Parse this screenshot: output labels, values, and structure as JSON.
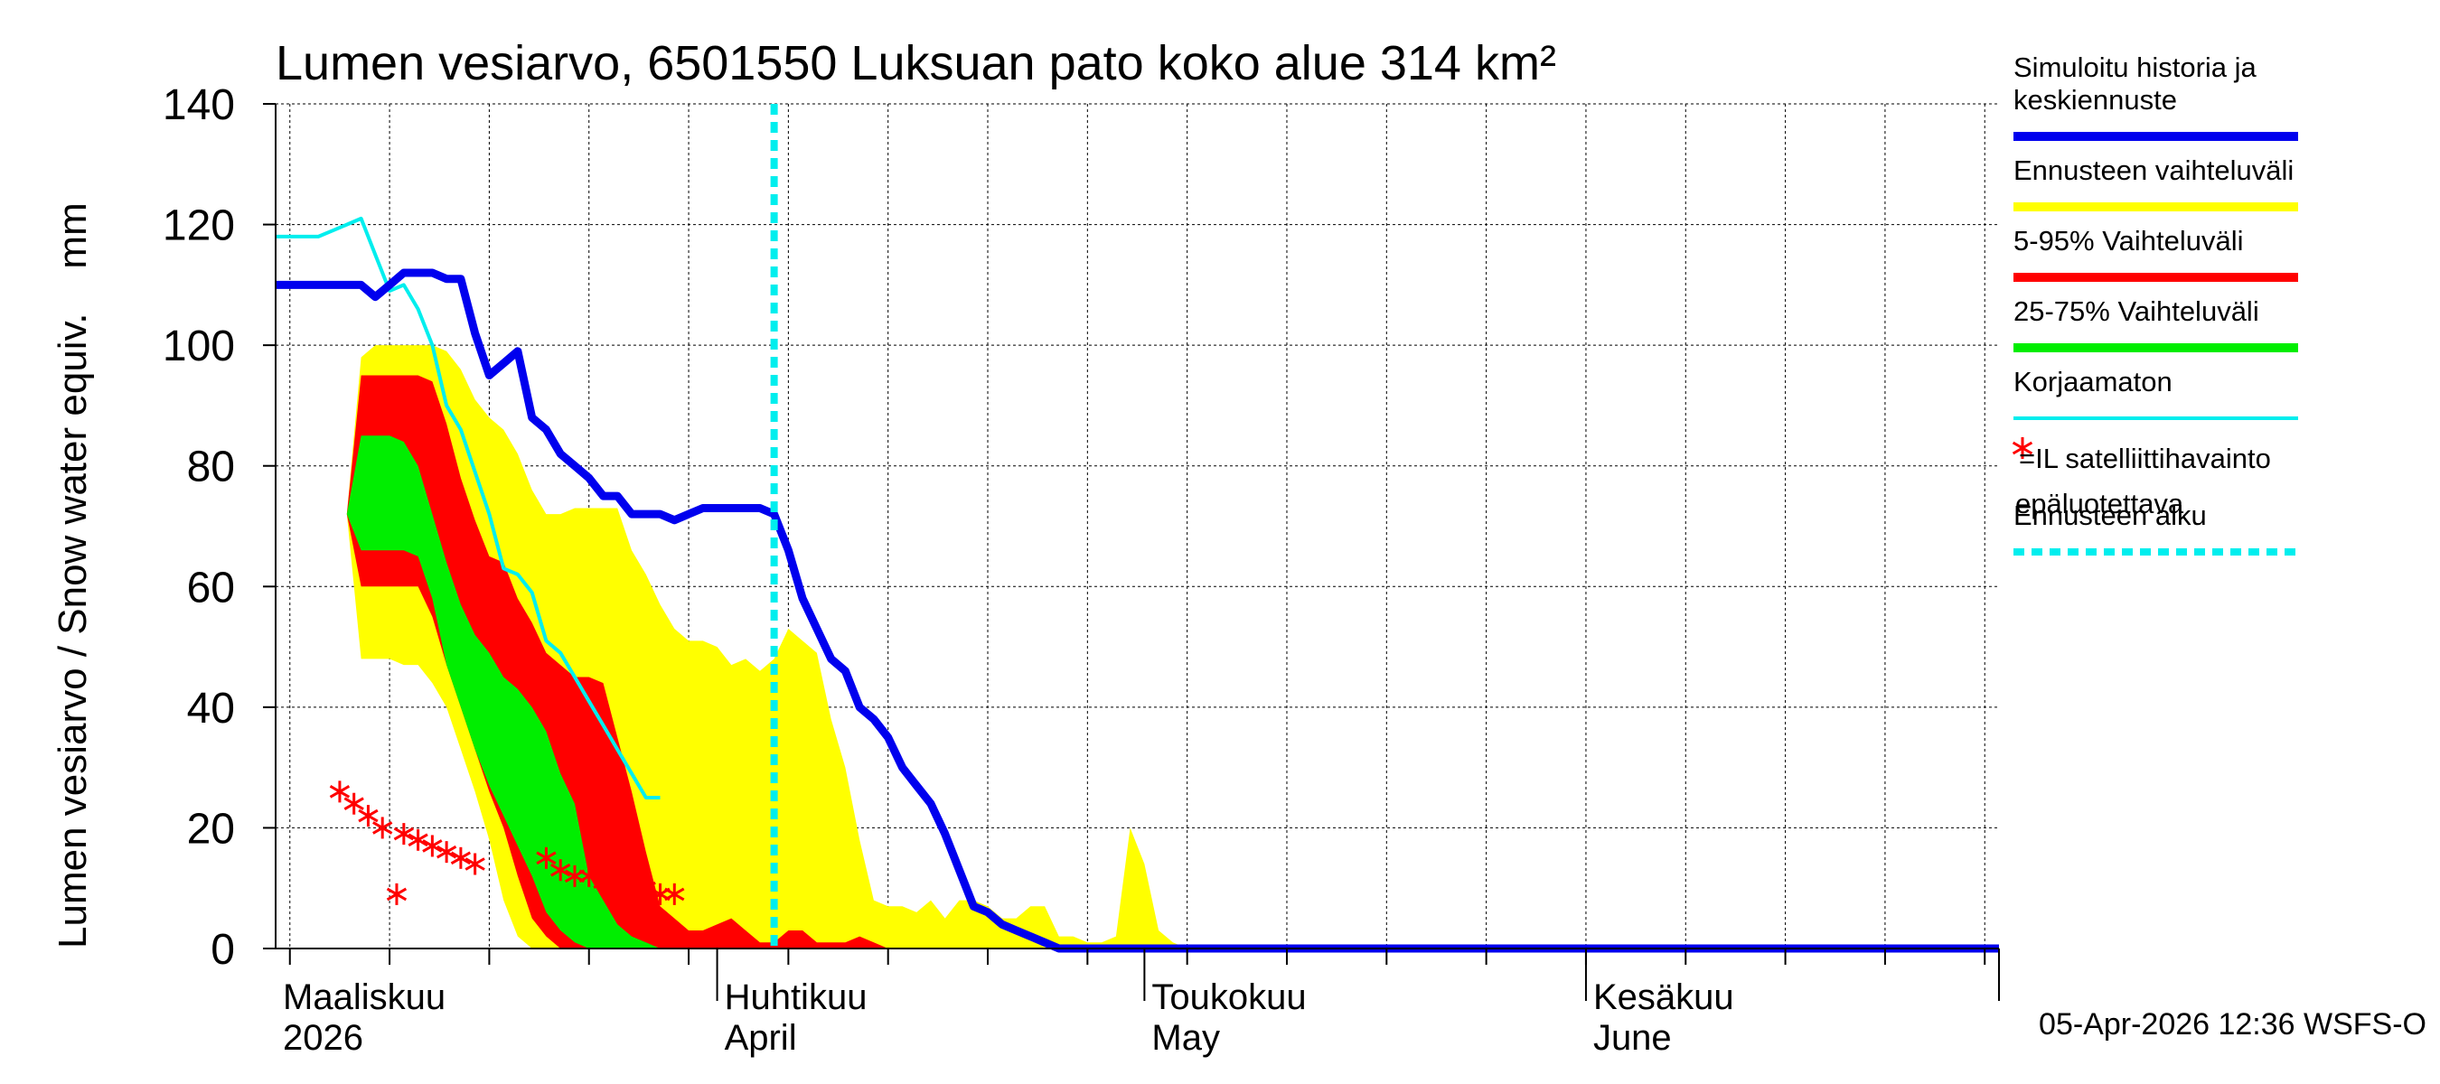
{
  "chart_data": {
    "type": "area",
    "title": "Lumen vesiarvo, 6501550 Luksuan pato koko alue 314 km²",
    "ylabel": "Lumen vesiarvo / Snow water equiv.    mm",
    "ylim": [
      0,
      140
    ],
    "yticks": [
      "0",
      "20",
      "40",
      "60",
      "80",
      "100",
      "120",
      "140"
    ],
    "xlim": [
      "2026-03-01",
      "2026-06-30"
    ],
    "grid": true,
    "month_labels": [
      {
        "line1": "Maaliskuu",
        "line2": "2026",
        "date": "2026-03-01"
      },
      {
        "line1": "Huhtikuu",
        "line2": "April",
        "date": "2026-04-01"
      },
      {
        "line1": "Toukokuu",
        "line2": "May",
        "date": "2026-05-01"
      },
      {
        "line1": "Kesäkuu",
        "line2": "June",
        "date": "2026-06-01"
      }
    ],
    "forecast_start": "2026-04-05",
    "footer": "05-Apr-2026 12:36 WSFS-O",
    "legend_position": "right",
    "legend": [
      {
        "label": "Simuloitu historia ja keskiennuste",
        "color": "#0000ee",
        "style": "line"
      },
      {
        "label": "Ennusteen vaihteluväli",
        "color": "#ffff00",
        "style": "line"
      },
      {
        "label": "5-95% Vaihteluväli",
        "color": "#ff0000",
        "style": "line"
      },
      {
        "label": "25-75% Vaihteluväli",
        "color": "#00ee00",
        "style": "line"
      },
      {
        "label": "Korjaamaton",
        "color": "#00eeee",
        "style": "line"
      },
      {
        "label": "=IL satelliittihavainto epäluotettava",
        "color": "#ff0000",
        "style": "star"
      },
      {
        "label": "Ennusteen alku",
        "color": "#00eeee",
        "style": "dashed"
      }
    ],
    "series": [
      {
        "name": "Ennusteen vaihteluväli",
        "kind": "band",
        "color": "#ffff00",
        "x": [
          5,
          6,
          7,
          8,
          9,
          10,
          11,
          12,
          13,
          14,
          15,
          16,
          17,
          18,
          19,
          20,
          21,
          22,
          23,
          24,
          25,
          26,
          27,
          28,
          29,
          30,
          31,
          32,
          33,
          34,
          35,
          36,
          37,
          38,
          39,
          40,
          41,
          42,
          43,
          44,
          45,
          46,
          47,
          48,
          49,
          50,
          51,
          52,
          53,
          54,
          55,
          56,
          57,
          58,
          59,
          60,
          61,
          62,
          63,
          64,
          65,
          66,
          67,
          68,
          69,
          70,
          71,
          72,
          73,
          74,
          75,
          76,
          77,
          78,
          79,
          80,
          81,
          82,
          83,
          84,
          85,
          86,
          87,
          88,
          89,
          90,
          91,
          92,
          93
        ],
        "upper": [
          72,
          98,
          100,
          100,
          100,
          100,
          100,
          99,
          96,
          91,
          88,
          86,
          82,
          76,
          72,
          72,
          73,
          73,
          73,
          73,
          66,
          62,
          57,
          53,
          51,
          51,
          50,
          47,
          48,
          46,
          48,
          53,
          51,
          49,
          38,
          30,
          18,
          8,
          7,
          7,
          6,
          8,
          5,
          8,
          8,
          7,
          5,
          5,
          7,
          7,
          2,
          2,
          1,
          1,
          2,
          20,
          14,
          3,
          1,
          0,
          0,
          0,
          0,
          0,
          0,
          0,
          0,
          0,
          0,
          0,
          0,
          0,
          0,
          0,
          0,
          0,
          0,
          0,
          0,
          0,
          0,
          0,
          0,
          0,
          0,
          0,
          0,
          0,
          0
        ],
        "lower": [
          72,
          48,
          48,
          48,
          47,
          47,
          44,
          40,
          33,
          26,
          18,
          8,
          2,
          0,
          0,
          0,
          0,
          0,
          0,
          0,
          0,
          0,
          0,
          0,
          0,
          0,
          0,
          0,
          0,
          0,
          0,
          0,
          0,
          0,
          0,
          0,
          0,
          0,
          0,
          0,
          0,
          0,
          0,
          0,
          0,
          0,
          0,
          0,
          0,
          0,
          0,
          0,
          0,
          0,
          0,
          0,
          0,
          0,
          0,
          0,
          0,
          0,
          0,
          0,
          0,
          0,
          0,
          0,
          0,
          0,
          0,
          0,
          0,
          0,
          0,
          0,
          0,
          0,
          0,
          0,
          0,
          0,
          0,
          0,
          0,
          0,
          0,
          0,
          0
        ]
      },
      {
        "name": "5-95% Vaihteluväli",
        "kind": "band",
        "color": "#ff0000",
        "x": [
          5,
          6,
          7,
          8,
          9,
          10,
          11,
          12,
          13,
          14,
          15,
          16,
          17,
          18,
          19,
          20,
          21,
          22,
          23,
          24,
          25,
          26,
          27,
          28,
          29,
          30,
          31,
          32,
          33,
          34,
          35,
          36,
          37,
          38,
          39,
          40,
          41,
          42,
          43,
          44,
          45,
          46,
          47,
          48,
          49,
          50,
          51,
          52,
          53,
          54,
          55,
          56,
          57,
          58,
          59,
          60,
          61,
          62,
          63,
          64,
          65,
          66,
          67,
          68,
          69,
          70,
          71,
          72,
          73,
          74,
          75,
          76,
          77,
          78,
          79,
          80,
          81,
          82,
          83,
          84,
          85,
          86,
          87,
          88,
          89,
          90,
          91,
          92,
          93
        ],
        "upper": [
          72,
          95,
          95,
          95,
          95,
          95,
          94,
          87,
          78,
          71,
          65,
          64,
          58,
          54,
          49,
          47,
          45,
          45,
          44,
          35,
          26,
          16,
          7,
          5,
          3,
          3,
          4,
          5,
          3,
          1,
          1,
          3,
          3,
          1,
          1,
          1,
          2,
          1,
          0,
          0,
          0,
          0,
          0,
          0,
          0,
          0,
          0,
          0,
          0,
          0,
          0,
          0,
          0,
          0,
          0,
          0,
          0,
          0,
          0,
          0,
          0,
          0,
          0,
          0,
          0,
          0,
          0,
          0,
          0,
          0,
          0,
          0,
          0,
          0,
          0,
          0,
          0,
          0,
          0,
          0,
          0,
          0,
          0,
          0,
          0,
          0,
          0,
          0,
          0
        ],
        "lower": [
          72,
          60,
          60,
          60,
          60,
          60,
          55,
          47,
          40,
          33,
          26,
          20,
          12,
          5,
          2,
          0,
          0,
          0,
          0,
          0,
          0,
          0,
          0,
          0,
          0,
          0,
          0,
          0,
          0,
          0,
          0,
          0,
          0,
          0,
          0,
          0,
          0,
          0,
          0,
          0,
          0,
          0,
          0,
          0,
          0,
          0,
          0,
          0,
          0,
          0,
          0,
          0,
          0,
          0,
          0,
          0,
          0,
          0,
          0,
          0,
          0,
          0,
          0,
          0,
          0,
          0,
          0,
          0,
          0,
          0,
          0,
          0,
          0,
          0,
          0,
          0,
          0,
          0,
          0,
          0,
          0,
          0,
          0,
          0,
          0,
          0,
          0,
          0,
          0
        ]
      },
      {
        "name": "25-75% Vaihteluväli",
        "kind": "band",
        "color": "#00ee00",
        "x": [
          5,
          6,
          7,
          8,
          9,
          10,
          11,
          12,
          13,
          14,
          15,
          16,
          17,
          18,
          19,
          20,
          21,
          22,
          23,
          24,
          25,
          26,
          27,
          28,
          29,
          30,
          31,
          32,
          33,
          34,
          35,
          36,
          37,
          38,
          39,
          40,
          41,
          42,
          43,
          44,
          45,
          46,
          47,
          48,
          49,
          50,
          51,
          52,
          53,
          54,
          55,
          56,
          57,
          58,
          59,
          60,
          61,
          62,
          63,
          64,
          65,
          66,
          67,
          68,
          69,
          70,
          71,
          72,
          73,
          74,
          75,
          76,
          77,
          78,
          79,
          80,
          81,
          82,
          83,
          84,
          85,
          86,
          87,
          88,
          89,
          90,
          91,
          92,
          93
        ],
        "upper": [
          72,
          85,
          85,
          85,
          84,
          80,
          72,
          64,
          57,
          52,
          49,
          45,
          43,
          40,
          36,
          29,
          24,
          12,
          8,
          4,
          2,
          1,
          0,
          0,
          0,
          0,
          0,
          0,
          0,
          0,
          0,
          0,
          0,
          0,
          0,
          0,
          0,
          0,
          0,
          0,
          0,
          0,
          0,
          0,
          0,
          0,
          0,
          0,
          0,
          0,
          0,
          0,
          0,
          0,
          0,
          0,
          0,
          0,
          0,
          0,
          0,
          0,
          0,
          0,
          0,
          0,
          0,
          0,
          0,
          0,
          0,
          0,
          0,
          0,
          0,
          0,
          0,
          0,
          0,
          0,
          0,
          0,
          0,
          0,
          0,
          0,
          0,
          0,
          0
        ],
        "lower": [
          72,
          66,
          66,
          66,
          66,
          65,
          58,
          47,
          40,
          33,
          27,
          22,
          17,
          12,
          6,
          3,
          1,
          0,
          0,
          0,
          0,
          0,
          0,
          0,
          0,
          0,
          0,
          0,
          0,
          0,
          0,
          0,
          0,
          0,
          0,
          0,
          0,
          0,
          0,
          0,
          0,
          0,
          0,
          0,
          0,
          0,
          0,
          0,
          0,
          0,
          0,
          0,
          0,
          0,
          0,
          0,
          0,
          0,
          0,
          0,
          0,
          0,
          0,
          0,
          0,
          0,
          0,
          0,
          0,
          0,
          0,
          0,
          0,
          0,
          0,
          0,
          0,
          0,
          0,
          0,
          0,
          0,
          0,
          0,
          0,
          0,
          0,
          0,
          0
        ]
      },
      {
        "name": "Korjaamaton",
        "kind": "line",
        "color": "#00eeee",
        "x": [
          0,
          1,
          2,
          3,
          4,
          5,
          6,
          7,
          8,
          9,
          10,
          11,
          12,
          13,
          14,
          15,
          16,
          17,
          18,
          19,
          20,
          21,
          22,
          23,
          24,
          25,
          26,
          27,
          28,
          29,
          30,
          31,
          32,
          33,
          34,
          35
        ],
        "y": [
          118,
          118,
          118,
          118,
          119,
          120,
          121,
          115,
          109,
          110,
          106,
          100,
          90,
          86,
          79,
          72,
          63,
          62,
          59,
          51,
          49,
          45,
          41,
          37,
          33,
          29,
          25,
          25,
          null,
          null,
          null,
          null,
          null,
          null,
          null,
          null
        ]
      },
      {
        "name": "Simuloitu historia ja keskiennuste",
        "kind": "line",
        "color": "#0000ee",
        "x": [
          0,
          1,
          2,
          3,
          4,
          5,
          6,
          7,
          8,
          9,
          10,
          11,
          12,
          13,
          14,
          15,
          16,
          17,
          18,
          19,
          20,
          21,
          22,
          23,
          24,
          25,
          26,
          27,
          28,
          29,
          30,
          31,
          32,
          33,
          34,
          35,
          36,
          37,
          38,
          39,
          40,
          41,
          42,
          43,
          44,
          45,
          46,
          47,
          48,
          49,
          50,
          51,
          52,
          53,
          54,
          55,
          56,
          57,
          58,
          59,
          60,
          61,
          62,
          63,
          64,
          65,
          66,
          67,
          68,
          69,
          70,
          71,
          72,
          73,
          74,
          75,
          76,
          77,
          78,
          79,
          80,
          81,
          82,
          83,
          84,
          85,
          86,
          87,
          88,
          89,
          90,
          91,
          92,
          93,
          94,
          95,
          96,
          97,
          98,
          99,
          100,
          101,
          102,
          103,
          104,
          105,
          106,
          107,
          108,
          109,
          110,
          111,
          112,
          113,
          114,
          115,
          116,
          117,
          118,
          119,
          120,
          121
        ],
        "y": [
          110,
          110,
          110,
          110,
          110,
          110,
          110,
          108,
          110,
          112,
          112,
          112,
          111,
          111,
          102,
          95,
          97,
          99,
          88,
          86,
          82,
          80,
          78,
          75,
          75,
          72,
          72,
          72,
          71,
          72,
          73,
          73,
          73,
          73,
          73,
          72,
          66,
          58,
          53,
          48,
          46,
          40,
          38,
          35,
          30,
          27,
          24,
          19,
          13,
          7,
          6,
          4,
          3,
          2,
          1,
          0,
          0,
          0,
          0,
          0,
          0,
          0,
          0,
          0,
          0,
          0,
          0,
          0,
          0,
          0,
          0,
          0,
          0,
          0,
          0,
          0,
          0,
          0,
          0,
          0,
          0,
          0,
          0,
          0,
          0,
          0,
          0,
          0,
          0,
          0,
          0,
          0,
          0,
          0,
          0,
          0,
          0,
          0,
          0,
          0,
          0,
          0,
          0,
          0,
          0,
          0,
          0,
          0,
          0,
          0,
          0,
          0,
          0,
          0,
          0,
          0,
          0,
          0,
          0,
          0,
          0,
          0
        ]
      },
      {
        "name": "=IL satelliittihavainto epäluotettava",
        "kind": "scatter",
        "color": "#ff0000",
        "x": [
          4.5,
          5.5,
          6.5,
          7.5,
          9,
          10,
          11,
          12,
          13,
          14,
          19,
          20,
          21,
          22,
          23,
          24,
          25,
          26,
          27,
          28,
          8.5
        ],
        "y": [
          26,
          24,
          22,
          20,
          19,
          18,
          17,
          16,
          15,
          14,
          15,
          13,
          12,
          12,
          11,
          11,
          11,
          10,
          9,
          9,
          9
        ]
      }
    ]
  }
}
